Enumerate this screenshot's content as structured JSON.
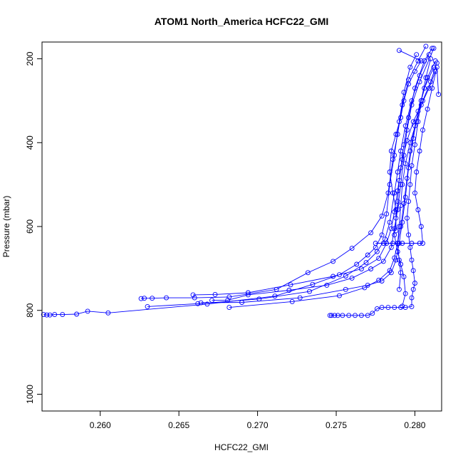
{
  "chart_data": {
    "type": "line",
    "title": "ATOM1 North_America HCFC22_GMI",
    "xlabel": "HCFC22_GMI",
    "ylabel": "Pressure (mbar)",
    "xlim": [
      0.2563,
      0.2817
    ],
    "ylim": [
      1040,
      160
    ],
    "y_reversed": true,
    "x_ticks": [
      0.26,
      0.265,
      0.27,
      0.275,
      0.28
    ],
    "x_tick_labels": [
      "0.260",
      "0.265",
      "0.270",
      "0.275",
      "0.280"
    ],
    "y_ticks": [
      200,
      400,
      600,
      800,
      1000
    ],
    "y_tick_labels": [
      "200",
      "400",
      "600",
      "800",
      "1000"
    ],
    "grid": false,
    "marker": "open-circle",
    "series_color": "#0000ff",
    "series": [
      {
        "points": [
          [
            0.2564,
            810
          ],
          [
            0.2566,
            811
          ],
          [
            0.2568,
            811
          ],
          [
            0.2571,
            810
          ],
          [
            0.2576,
            810
          ],
          [
            0.2585,
            809
          ],
          [
            0.2592,
            802
          ],
          [
            0.2605,
            806
          ],
          [
            0.2668,
            785
          ],
          [
            0.2711,
            766
          ],
          [
            0.2735,
            738
          ],
          [
            0.2752,
            715
          ],
          [
            0.2763,
            690
          ],
          [
            0.277,
            668
          ],
          [
            0.2775,
            650
          ],
          [
            0.2779,
            620
          ],
          [
            0.2782,
            570
          ],
          [
            0.2784,
            500
          ],
          [
            0.2787,
            430
          ],
          [
            0.279,
            350
          ],
          [
            0.2793,
            280
          ],
          [
            0.2797,
            220
          ],
          [
            0.2801,
            190
          ]
        ]
      },
      {
        "points": [
          [
            0.2626,
            772
          ],
          [
            0.2628,
            771
          ],
          [
            0.2633,
            771
          ],
          [
            0.2642,
            770
          ],
          [
            0.266,
            770
          ],
          [
            0.2682,
            768
          ],
          [
            0.2712,
            750
          ],
          [
            0.2732,
            710
          ],
          [
            0.2748,
            683
          ],
          [
            0.276,
            652
          ],
          [
            0.2772,
            615
          ],
          [
            0.2779,
            575
          ],
          [
            0.2783,
            520
          ],
          [
            0.2786,
            440
          ],
          [
            0.2789,
            380
          ],
          [
            0.2792,
            310
          ],
          [
            0.2796,
            250
          ],
          [
            0.2802,
            205
          ],
          [
            0.2807,
            170
          ]
        ]
      },
      {
        "points": [
          [
            0.263,
            791
          ],
          [
            0.2662,
            784
          ],
          [
            0.2701,
            773
          ],
          [
            0.2733,
            755
          ],
          [
            0.2756,
            718
          ],
          [
            0.2769,
            686
          ],
          [
            0.2776,
            660
          ],
          [
            0.2781,
            630
          ],
          [
            0.2784,
            590
          ],
          [
            0.2787,
            520
          ],
          [
            0.2789,
            470
          ],
          [
            0.2791,
            420
          ],
          [
            0.2794,
            360
          ],
          [
            0.2798,
            300
          ],
          [
            0.2803,
            240
          ],
          [
            0.2809,
            190
          ]
        ]
      },
      {
        "points": [
          [
            0.2659,
            763
          ],
          [
            0.2673,
            762
          ],
          [
            0.2694,
            758
          ],
          [
            0.2721,
            739
          ],
          [
            0.2748,
            719
          ],
          [
            0.2766,
            701
          ],
          [
            0.2777,
            676
          ],
          [
            0.2782,
            640
          ],
          [
            0.2785,
            605
          ],
          [
            0.2787,
            565
          ],
          [
            0.2789,
            515
          ],
          [
            0.2791,
            460
          ],
          [
            0.2793,
            405
          ],
          [
            0.2796,
            340
          ],
          [
            0.28,
            270
          ],
          [
            0.2806,
            205
          ],
          [
            0.2811,
            175
          ]
        ]
      },
      {
        "points": [
          [
            0.2671,
            776
          ],
          [
            0.2681,
            776
          ],
          [
            0.2694,
            763
          ],
          [
            0.272,
            752
          ],
          [
            0.2744,
            740
          ],
          [
            0.276,
            723
          ],
          [
            0.2772,
            701
          ],
          [
            0.278,
            683
          ],
          [
            0.2785,
            650
          ],
          [
            0.2787,
            605
          ],
          [
            0.2789,
            560
          ],
          [
            0.2791,
            500
          ],
          [
            0.2793,
            430
          ],
          [
            0.2795,
            370
          ],
          [
            0.2798,
            310
          ],
          [
            0.2803,
            255
          ],
          [
            0.2812,
            175
          ]
        ]
      },
      {
        "points": [
          [
            0.2664,
            782
          ],
          [
            0.269,
            781
          ],
          [
            0.2727,
            770
          ],
          [
            0.2756,
            750
          ],
          [
            0.277,
            740
          ],
          [
            0.2779,
            730
          ],
          [
            0.2785,
            710
          ],
          [
            0.2788,
            680
          ],
          [
            0.279,
            640
          ],
          [
            0.2792,
            590
          ],
          [
            0.2794,
            530
          ],
          [
            0.2796,
            460
          ],
          [
            0.2799,
            390
          ],
          [
            0.2802,
            325
          ],
          [
            0.2806,
            270
          ],
          [
            0.2812,
            220
          ]
        ]
      },
      {
        "points": [
          [
            0.2682,
            793
          ],
          [
            0.2722,
            779
          ],
          [
            0.2752,
            765
          ],
          [
            0.2768,
            746
          ],
          [
            0.2777,
            728
          ],
          [
            0.2784,
            705
          ],
          [
            0.2787,
            675
          ],
          [
            0.2789,
            640
          ],
          [
            0.2791,
            600
          ],
          [
            0.2793,
            545
          ],
          [
            0.2795,
            485
          ],
          [
            0.2797,
            420
          ],
          [
            0.28,
            360
          ],
          [
            0.2804,
            300
          ],
          [
            0.2808,
            245
          ],
          [
            0.2813,
            205
          ]
        ]
      },
      {
        "points": [
          [
            0.2746,
            812
          ],
          [
            0.2747,
            812
          ],
          [
            0.2749,
            812
          ],
          [
            0.2751,
            812
          ],
          [
            0.2754,
            812
          ],
          [
            0.2758,
            812
          ],
          [
            0.2762,
            812
          ],
          [
            0.2766,
            812
          ],
          [
            0.277,
            812
          ],
          [
            0.2773,
            807
          ],
          [
            0.2776,
            796
          ],
          [
            0.2779,
            793
          ],
          [
            0.2783,
            793
          ],
          [
            0.2787,
            793
          ],
          [
            0.2791,
            793
          ],
          [
            0.2794,
            793
          ],
          [
            0.2798,
            791
          ],
          [
            0.2798,
            770
          ],
          [
            0.2799,
            750
          ],
          [
            0.28,
            735
          ],
          [
            0.2799,
            705
          ],
          [
            0.2798,
            680
          ],
          [
            0.2797,
            650
          ],
          [
            0.2796,
            620
          ],
          [
            0.2795,
            580
          ],
          [
            0.2796,
            540
          ],
          [
            0.2797,
            500
          ],
          [
            0.2798,
            455
          ],
          [
            0.28,
            405
          ],
          [
            0.2802,
            350
          ],
          [
            0.2804,
            300
          ],
          [
            0.2807,
            245
          ],
          [
            0.281,
            200
          ]
        ]
      },
      {
        "points": [
          [
            0.2775,
            640
          ],
          [
            0.278,
            640
          ],
          [
            0.2786,
            640
          ],
          [
            0.2792,
            640
          ],
          [
            0.2798,
            640
          ],
          [
            0.2803,
            640
          ],
          [
            0.2805,
            640
          ],
          [
            0.2804,
            600
          ],
          [
            0.2802,
            560
          ],
          [
            0.28,
            520
          ],
          [
            0.2801,
            470
          ],
          [
            0.2803,
            420
          ],
          [
            0.2805,
            370
          ],
          [
            0.2808,
            320
          ],
          [
            0.2811,
            270
          ],
          [
            0.2814,
            220
          ],
          [
            0.2815,
            285
          ]
        ]
      },
      {
        "points": [
          [
            0.2788,
            610
          ],
          [
            0.2788,
            560
          ],
          [
            0.2786,
            520
          ],
          [
            0.2784,
            470
          ],
          [
            0.2785,
            420
          ],
          [
            0.2788,
            380
          ],
          [
            0.2791,
            340
          ],
          [
            0.2793,
            300
          ],
          [
            0.2796,
            260
          ],
          [
            0.28,
            230
          ],
          [
            0.2804,
            205
          ],
          [
            0.279,
            180
          ]
        ]
      },
      {
        "points": [
          [
            0.279,
            750
          ],
          [
            0.2791,
            710
          ],
          [
            0.279,
            680
          ],
          [
            0.2789,
            640
          ],
          [
            0.279,
            600
          ],
          [
            0.2791,
            550
          ],
          [
            0.2792,
            500
          ],
          [
            0.2794,
            450
          ],
          [
            0.2797,
            400
          ],
          [
            0.2801,
            350
          ],
          [
            0.2805,
            300
          ],
          [
            0.281,
            255
          ],
          [
            0.2814,
            210
          ]
        ]
      },
      {
        "points": [
          [
            0.2792,
            790
          ],
          [
            0.2794,
            760
          ],
          [
            0.2793,
            720
          ],
          [
            0.2791,
            690
          ],
          [
            0.2789,
            660
          ],
          [
            0.2787,
            620
          ],
          [
            0.2788,
            580
          ],
          [
            0.2789,
            540
          ],
          [
            0.279,
            490
          ],
          [
            0.2792,
            440
          ],
          [
            0.2795,
            395
          ],
          [
            0.2799,
            350
          ],
          [
            0.2804,
            310
          ],
          [
            0.2809,
            270
          ],
          [
            0.2813,
            230
          ]
        ]
      }
    ]
  }
}
